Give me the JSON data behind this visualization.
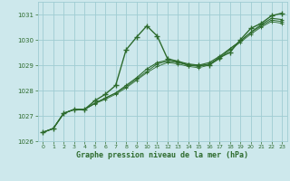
{
  "xlabel": "Graphe pression niveau de la mer (hPa)",
  "bg_color": "#cde8ec",
  "grid_color": "#9fccd2",
  "line_color": "#2d6b2d",
  "ylim": [
    1026.0,
    1031.5
  ],
  "xlim": [
    -0.5,
    23.5
  ],
  "yticks": [
    1026,
    1027,
    1028,
    1029,
    1030,
    1031
  ],
  "xticks": [
    0,
    1,
    2,
    3,
    4,
    5,
    6,
    7,
    8,
    9,
    10,
    11,
    12,
    13,
    14,
    15,
    16,
    17,
    18,
    19,
    20,
    21,
    22,
    23
  ],
  "series": [
    {
      "y": [
        1026.35,
        1026.5,
        1027.1,
        1027.25,
        1027.25,
        1027.6,
        1027.85,
        1028.2,
        1029.6,
        1030.1,
        1030.55,
        1030.15,
        1029.25,
        1029.15,
        1029.0,
        1029.0,
        1029.0,
        1029.3,
        1029.5,
        1030.0,
        1030.45,
        1030.65,
        1030.95,
        1031.05
      ],
      "lw": 1.0,
      "marker": "+",
      "ms": 4.0,
      "mew": 1.0
    },
    {
      "y": [
        1026.35,
        1026.5,
        1027.1,
        1027.25,
        1027.25,
        1027.5,
        1027.7,
        1027.9,
        1028.2,
        1028.5,
        1028.85,
        1029.1,
        1029.2,
        1029.15,
        1029.05,
        1029.0,
        1029.1,
        1029.35,
        1029.65,
        1029.95,
        1030.3,
        1030.6,
        1030.85,
        1030.8
      ],
      "lw": 0.8,
      "marker": "+",
      "ms": 3.5,
      "mew": 0.8
    },
    {
      "y": [
        1026.35,
        1026.5,
        1027.1,
        1027.25,
        1027.25,
        1027.5,
        1027.7,
        1027.9,
        1028.15,
        1028.45,
        1028.75,
        1029.05,
        1029.15,
        1029.1,
        1029.0,
        1028.95,
        1029.05,
        1029.3,
        1029.65,
        1029.95,
        1030.28,
        1030.55,
        1030.78,
        1030.72
      ],
      "lw": 0.7,
      "marker": "+",
      "ms": 3.0,
      "mew": 0.7
    },
    {
      "y": [
        1026.35,
        1026.5,
        1027.1,
        1027.25,
        1027.25,
        1027.48,
        1027.65,
        1027.85,
        1028.1,
        1028.4,
        1028.7,
        1028.95,
        1029.1,
        1029.05,
        1028.95,
        1028.9,
        1029.0,
        1029.25,
        1029.6,
        1029.9,
        1030.22,
        1030.5,
        1030.72,
        1030.65
      ],
      "lw": 0.6,
      "marker": "+",
      "ms": 2.5,
      "mew": 0.6
    }
  ]
}
